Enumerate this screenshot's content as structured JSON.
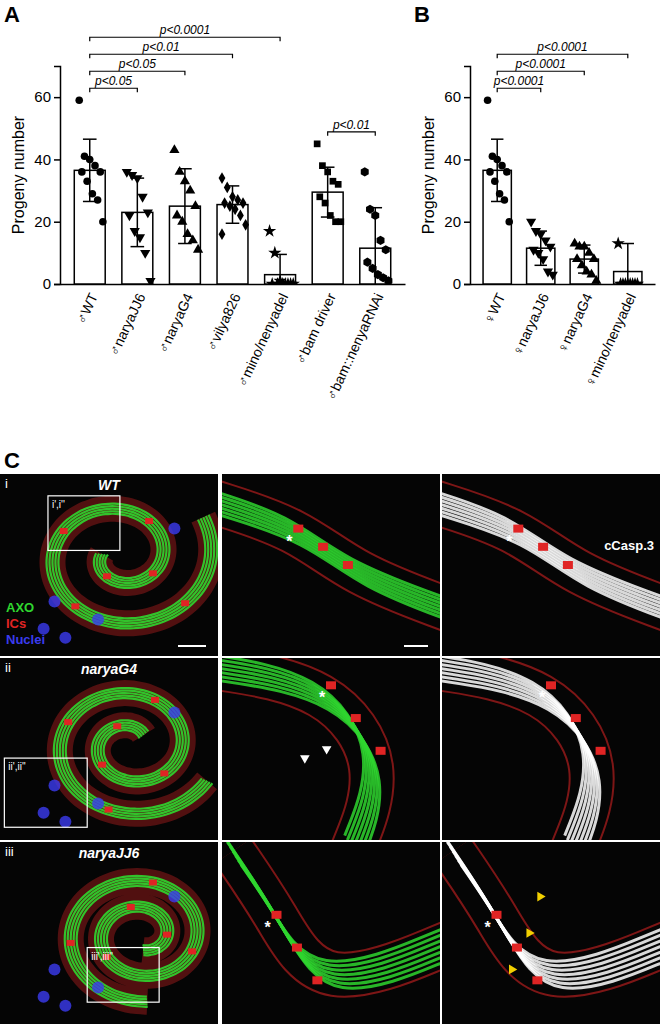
{
  "chart_data": [
    {
      "panel_label": "A",
      "type": "bar",
      "y_label": "Progeny number",
      "color": "#ffffff",
      "categories": [
        "♂WT",
        "♂naryaJJ6",
        "♂naryaG4",
        "♂vilya826",
        "♂mino/nenyadel",
        "♂bam driver",
        "♂bam::nenyaRNAi"
      ],
      "values": [
        36.5,
        23,
        25,
        25.5,
        3,
        29.5,
        11.5
      ],
      "errors": [
        10,
        11,
        12,
        6,
        6.5,
        8,
        13
      ],
      "points": [
        {
          "marker": "circle",
          "values": [
            59,
            41,
            40,
            38,
            36,
            36,
            33,
            29,
            27,
            20
          ]
        },
        {
          "marker": "triangle-down",
          "values": [
            36,
            35,
            34,
            28,
            23,
            22,
            17,
            15,
            10,
            1
          ]
        },
        {
          "marker": "triangle",
          "values": [
            43,
            36,
            33,
            30,
            25,
            22,
            20,
            16,
            14,
            11
          ]
        },
        {
          "marker": "diamond",
          "values": [
            34,
            31,
            28,
            27,
            26,
            26,
            25,
            24,
            22,
            19,
            16
          ]
        },
        {
          "marker": "star",
          "values": [
            17,
            10,
            1,
            0,
            0,
            0,
            0,
            0,
            0,
            0
          ]
        },
        {
          "marker": "square",
          "values": [
            45,
            38,
            36,
            33,
            32,
            28,
            26,
            22,
            20,
            20
          ]
        },
        {
          "marker": "hexagon",
          "values": [
            36,
            24,
            22,
            14,
            11,
            7,
            5,
            3,
            2,
            1
          ]
        }
      ],
      "ylim": [
        0,
        70
      ],
      "yticks": [
        0,
        20,
        40,
        60
      ],
      "comparisons": [
        {
          "groups": [
            "♂WT",
            "♂mino/nenyadel"
          ],
          "label": "p<0.0001"
        },
        {
          "groups": [
            "♂WT",
            "♂vilya826"
          ],
          "label": "p<0.01"
        },
        {
          "groups": [
            "♂WT",
            "♂naryaG4"
          ],
          "label": "p<0.05"
        },
        {
          "groups": [
            "♂WT",
            "♂naryaJJ6"
          ],
          "label": "p<0.05"
        },
        {
          "groups": [
            "♂bam driver",
            "♂bam::nenyaRNAi"
          ],
          "label": "p<0.01"
        }
      ]
    },
    {
      "panel_label": "B",
      "type": "bar",
      "y_label": "Progeny number",
      "color": "#ffffff",
      "categories": [
        "♀WT",
        "♀naryaJJ6",
        "♀naryaG4",
        "♀mino/nenyadel"
      ],
      "values": [
        36.5,
        11.5,
        8,
        4
      ],
      "errors": [
        10,
        5.5,
        4.5,
        9
      ],
      "points": [
        {
          "marker": "circle",
          "values": [
            59,
            41,
            40,
            38,
            36,
            36,
            33,
            29,
            27,
            20
          ]
        },
        {
          "marker": "triangle-down",
          "values": [
            20,
            17,
            16,
            14,
            12,
            11,
            10,
            8,
            4,
            3
          ]
        },
        {
          "marker": "triangle",
          "values": [
            13,
            12,
            12,
            10,
            8,
            8,
            6,
            4,
            3,
            1
          ]
        },
        {
          "marker": "star",
          "values": [
            13,
            0,
            0,
            0,
            0,
            0,
            0,
            0,
            0
          ]
        }
      ],
      "ylim": [
        0,
        70
      ],
      "yticks": [
        0,
        20,
        40,
        60
      ],
      "comparisons": [
        {
          "groups": [
            "♀WT",
            "♀mino/nenyadel"
          ],
          "label": "p<0.0001"
        },
        {
          "groups": [
            "♀WT",
            "♀naryaG4"
          ],
          "label": "p<0.0001"
        },
        {
          "groups": [
            "♀WT",
            "♀naryaJJ6"
          ],
          "label": "p<0.0001"
        }
      ]
    }
  ],
  "panel_c": {
    "panel_label": "C",
    "channels": [
      {
        "name": "AXO",
        "color": "#2fd62f"
      },
      {
        "name": "ICs",
        "color": "#e02424"
      },
      {
        "name": "Nuclei",
        "color": "#3b3bf0"
      }
    ],
    "overlay": {
      "name": "cCasp.3",
      "color": "#ffffff"
    },
    "asterisk": "*",
    "rows": [
      {
        "label": "i",
        "genotype": "WT",
        "inset_label": "i',i''"
      },
      {
        "label": "ii",
        "genotype": "naryaG4",
        "inset_label": "ii',ii''"
      },
      {
        "label": "iii",
        "genotype": "naryaJJ6",
        "inset_label": "iii',iii''"
      }
    ]
  }
}
